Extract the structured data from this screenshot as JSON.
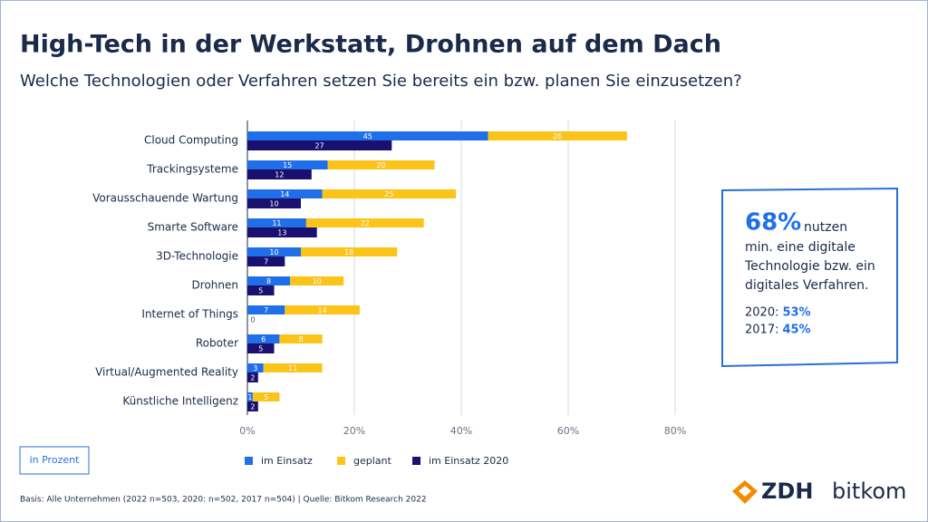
{
  "chart_data": {
    "type": "bar",
    "title": "High-Tech in der Werkstatt, Drohnen auf dem Dach",
    "subtitle": "Welche Technologien oder Verfahren setzen Sie bereits ein bzw. planen Sie einzusetzen?",
    "categories": [
      "Cloud Computing",
      "Trackingsysteme",
      "Vorausschauende Wartung",
      "Smarte Software",
      "3D-Technologie",
      "Drohnen",
      "Internet of Things",
      "Roboter",
      "Virtual/Augmented Reality",
      "Künstliche Intelligenz"
    ],
    "series": [
      {
        "name": "im Einsatz",
        "color": "#1f6fe8",
        "values": [
          45,
          15,
          14,
          11,
          10,
          8,
          7,
          6,
          3,
          1
        ]
      },
      {
        "name": "geplant",
        "color": "#fcc419",
        "values": [
          26,
          20,
          25,
          22,
          18,
          10,
          14,
          8,
          11,
          5
        ]
      },
      {
        "name": "im Einsatz 2020",
        "color": "#1a1070",
        "values": [
          27,
          12,
          10,
          13,
          7,
          5,
          0,
          5,
          2,
          2
        ]
      }
    ],
    "xlim": [
      0,
      80
    ],
    "xticks": [
      {
        "value": 0,
        "label": "0%"
      },
      {
        "value": 20,
        "label": "20%"
      },
      {
        "value": 40,
        "label": "40%"
      },
      {
        "value": 60,
        "label": "60%"
      },
      {
        "value": 80,
        "label": "80%"
      }
    ],
    "grid": true,
    "unit_note": "in Prozent",
    "callout": {
      "big": "68%",
      "lead": "nutzen",
      "lines": [
        "min. eine digitale",
        "Technologie bzw. ein",
        "digitales Verfahren."
      ],
      "history": [
        {
          "label": "2020:",
          "value": "53%"
        },
        {
          "label": "2017:",
          "value": "45%"
        }
      ]
    },
    "footnote": "Basis: Alle Unternehmen (2022 n=503, 2020: n=502, 2017 n=504) | Quelle: Bitkom Research 2022",
    "logos": [
      "ZDH",
      "bitkom"
    ]
  }
}
